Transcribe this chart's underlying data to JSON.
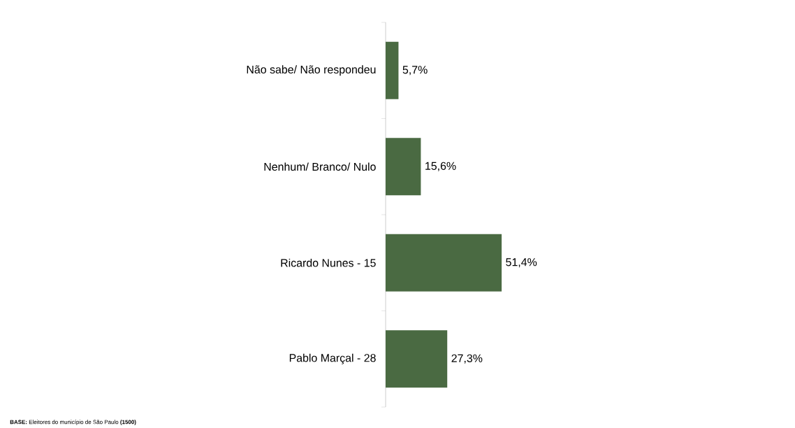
{
  "chart_data": {
    "type": "bar",
    "orientation": "horizontal",
    "categories": [
      "Não sabe/ Não respondeu",
      "Nenhum/ Branco/ Nulo",
      "Ricardo Nunes - 15",
      "Pablo Marçal - 28"
    ],
    "values": [
      5.7,
      15.6,
      51.4,
      27.3
    ],
    "value_labels": [
      "5,7%",
      "15,6%",
      "51,4%",
      "27,3%"
    ],
    "color": "#4a6a42",
    "annotations": [
      "**BASE:** Eleitores do município de São Paulo **(1500)**"
    ]
  }
}
